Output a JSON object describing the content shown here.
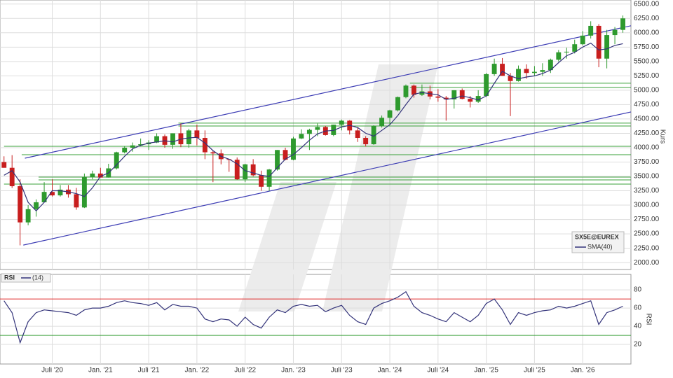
{
  "chart_data": {
    "type": "candlestick",
    "instrument": "SX5E@EUREX",
    "y_label": "Kurs",
    "x": [
      0,
      1,
      2,
      3,
      4,
      5,
      6,
      7,
      8,
      9,
      10,
      11,
      12,
      13,
      14,
      15,
      16,
      17,
      18,
      19,
      20,
      21,
      22,
      23,
      24,
      25,
      26,
      27,
      28,
      29,
      30,
      31,
      32,
      33,
      34,
      35,
      36,
      37,
      38,
      39,
      40,
      41,
      42,
      43,
      44,
      45,
      46,
      47,
      48,
      49,
      50,
      51,
      52,
      53,
      54,
      55,
      56,
      57,
      58,
      59,
      60,
      61,
      62,
      63,
      64,
      65,
      66,
      67,
      68,
      69,
      70,
      71,
      72,
      73,
      74,
      75,
      76,
      77
    ],
    "xlim": [
      -0.5,
      78
    ],
    "xticks": [
      {
        "value": 6,
        "label": "Juli '20"
      },
      {
        "value": 12,
        "label": "Jan. '21"
      },
      {
        "value": 18,
        "label": "Juli '21"
      },
      {
        "value": 24,
        "label": "Jan. '22"
      },
      {
        "value": 30,
        "label": "Juli '22"
      },
      {
        "value": 36,
        "label": "Jan. '23"
      },
      {
        "value": 42,
        "label": "Juli '23"
      },
      {
        "value": 48,
        "label": "Jan. '24"
      },
      {
        "value": 54,
        "label": "Juli '24"
      },
      {
        "value": 60,
        "label": "Jan. '25"
      },
      {
        "value": 66,
        "label": "Juli '25"
      },
      {
        "value": 72,
        "label": "Jan. '26"
      }
    ],
    "ylim": [
      1880,
      6570
    ],
    "yticks": [
      {
        "value": 2000,
        "label": "2000.00"
      },
      {
        "value": 2250,
        "label": "2250.00"
      },
      {
        "value": 2500,
        "label": "2500.00"
      },
      {
        "value": 2750,
        "label": "2750.00"
      },
      {
        "value": 3000,
        "label": "3000.00"
      },
      {
        "value": 3250,
        "label": "3250.00"
      },
      {
        "value": 3500,
        "label": "3500.00"
      },
      {
        "value": 3750,
        "label": "3750.00"
      },
      {
        "value": 4000,
        "label": "4000.00"
      },
      {
        "value": 4250,
        "label": "4250.00"
      },
      {
        "value": 4500,
        "label": "4500.00"
      },
      {
        "value": 4750,
        "label": "4750.00"
      },
      {
        "value": 5000,
        "label": "5000.00"
      },
      {
        "value": 5250,
        "label": "5250.00"
      },
      {
        "value": 5500,
        "label": "5500.00"
      },
      {
        "value": 5750,
        "label": "5750.00"
      },
      {
        "value": 6000,
        "label": "6000.00"
      },
      {
        "value": 6250,
        "label": "6250.00"
      },
      {
        "value": 6500,
        "label": "6500.00"
      }
    ],
    "grid": true,
    "up_color": "#2e9a2e",
    "down_color": "#c81e1e",
    "candles": [
      [
        3750,
        3850,
        3650,
        3650
      ],
      [
        3650,
        3870,
        3300,
        3330
      ],
      [
        3330,
        3450,
        2300,
        2700
      ],
      [
        2700,
        3000,
        2650,
        2930
      ],
      [
        2930,
        3100,
        2800,
        3050
      ],
      [
        3050,
        3400,
        3050,
        3230
      ],
      [
        3230,
        3450,
        3150,
        3170
      ],
      [
        3170,
        3350,
        3150,
        3270
      ],
      [
        3270,
        3350,
        3130,
        3190
      ],
      [
        3190,
        3300,
        2920,
        2960
      ],
      [
        2960,
        3550,
        2950,
        3490
      ],
      [
        3490,
        3600,
        3450,
        3550
      ],
      [
        3550,
        3650,
        3480,
        3480
      ],
      [
        3480,
        3720,
        3480,
        3640
      ],
      [
        3640,
        3930,
        3620,
        3920
      ],
      [
        3920,
        4030,
        3900,
        4000
      ],
      [
        4000,
        4090,
        3930,
        4040
      ],
      [
        4040,
        4160,
        4030,
        4060
      ],
      [
        4060,
        4130,
        3960,
        4090
      ],
      [
        4090,
        4250,
        4080,
        4200
      ],
      [
        4200,
        4230,
        4000,
        4050
      ],
      [
        4050,
        4250,
        3980,
        4250
      ],
      [
        4250,
        4420,
        4010,
        4060
      ],
      [
        4060,
        4330,
        4000,
        4300
      ],
      [
        4300,
        4400,
        4040,
        4170
      ],
      [
        4170,
        4300,
        3800,
        3920
      ],
      [
        3920,
        3950,
        3400,
        3900
      ],
      [
        3900,
        3970,
        3710,
        3800
      ],
      [
        3800,
        3800,
        3580,
        3790
      ],
      [
        3790,
        3830,
        3440,
        3450
      ],
      [
        3450,
        3720,
        3400,
        3710
      ],
      [
        3710,
        3800,
        3500,
        3520
      ],
      [
        3520,
        3600,
        3250,
        3320
      ],
      [
        3320,
        3630,
        3250,
        3620
      ],
      [
        3620,
        3960,
        3600,
        3960
      ],
      [
        3960,
        4000,
        3780,
        3790
      ],
      [
        3790,
        4190,
        3780,
        4160
      ],
      [
        4160,
        4320,
        4150,
        4240
      ],
      [
        4240,
        4330,
        3960,
        4310
      ],
      [
        4310,
        4420,
        4200,
        4360
      ],
      [
        4360,
        4380,
        4210,
        4220
      ],
      [
        4220,
        4400,
        4200,
        4400
      ],
      [
        4400,
        4490,
        4300,
        4470
      ],
      [
        4470,
        4480,
        4230,
        4300
      ],
      [
        4300,
        4350,
        4100,
        4170
      ],
      [
        4170,
        4200,
        4020,
        4060
      ],
      [
        4060,
        4390,
        4050,
        4380
      ],
      [
        4380,
        4560,
        4350,
        4520
      ],
      [
        4520,
        4660,
        4400,
        4650
      ],
      [
        4650,
        4890,
        4630,
        4880
      ],
      [
        4880,
        5100,
        4860,
        5080
      ],
      [
        5080,
        5100,
        4870,
        4920
      ],
      [
        4920,
        5100,
        4900,
        4980
      ],
      [
        4980,
        5080,
        4840,
        4890
      ],
      [
        4890,
        5020,
        4800,
        4870
      ],
      [
        4870,
        4900,
        4470,
        4840
      ],
      [
        4840,
        5000,
        4680,
        5000
      ],
      [
        5000,
        5030,
        4840,
        4850
      ],
      [
        4850,
        4900,
        4700,
        4800
      ],
      [
        4800,
        5000,
        4780,
        4900
      ],
      [
        4900,
        5300,
        4880,
        5280
      ],
      [
        5280,
        5550,
        5250,
        5460
      ],
      [
        5460,
        5560,
        5250,
        5250
      ],
      [
        5250,
        5300,
        4550,
        5160
      ],
      [
        5160,
        5430,
        5150,
        5370
      ],
      [
        5370,
        5450,
        5200,
        5300
      ],
      [
        5300,
        5420,
        5250,
        5320
      ],
      [
        5320,
        5470,
        5250,
        5350
      ],
      [
        5350,
        5550,
        5300,
        5530
      ],
      [
        5530,
        5700,
        5500,
        5660
      ],
      [
        5660,
        5740,
        5550,
        5670
      ],
      [
        5670,
        5880,
        5640,
        5800
      ],
      [
        5800,
        6030,
        5780,
        5950
      ],
      [
        5950,
        6200,
        5900,
        6120
      ],
      [
        6120,
        6150,
        5400,
        5550
      ],
      [
        5550,
        6050,
        5380,
        5960
      ],
      [
        5960,
        6100,
        5800,
        6050
      ],
      [
        6050,
        6300,
        6000,
        6250
      ]
    ],
    "sma": {
      "name": "SMA(40)",
      "color": "#33337a",
      "values": [
        3520,
        3600,
        3400,
        3050,
        2900,
        3050,
        3250,
        3250,
        3230,
        3200,
        3150,
        3300,
        3500,
        3560,
        3700,
        3850,
        3980,
        4040,
        4080,
        4100,
        4120,
        4100,
        4150,
        4170,
        4180,
        4080,
        3950,
        3850,
        3800,
        3720,
        3600,
        3560,
        3520,
        3500,
        3650,
        3800,
        3880,
        4000,
        4130,
        4240,
        4290,
        4300,
        4360,
        4390,
        4350,
        4250,
        4200,
        4300,
        4400,
        4560,
        4750,
        4930,
        4960,
        4940,
        4920,
        4840,
        4860,
        4900,
        4870,
        4830,
        4900,
        5120,
        5330,
        5250,
        5200,
        5230,
        5250,
        5290,
        5350,
        5480,
        5600,
        5660,
        5750,
        5820,
        5700,
        5720,
        5780,
        5810
      ]
    },
    "channel_color": "#3c3cb4",
    "channels": [
      {
        "x": [
          2.6,
          78
        ],
        "y": [
          3817,
          6122
        ]
      },
      {
        "x": [
          2.4,
          78
        ],
        "y": [
          2305,
          4622
        ]
      }
    ],
    "level_color": "#3aa03a",
    "levels": [
      {
        "x_start": 50.5,
        "value": 5122
      },
      {
        "x_start": 50.5,
        "value": 5049
      },
      {
        "x_start": 21.7,
        "value": 4427
      },
      {
        "x_start": 21.7,
        "value": 4378
      },
      {
        "x_start": 0,
        "value": 4024
      },
      {
        "x_start": 2.2,
        "value": 3878
      },
      {
        "x_start": 4.3,
        "value": 3488
      },
      {
        "x_start": 4.3,
        "value": 3439
      },
      {
        "x_start": 0,
        "value": 3366
      }
    ],
    "rsi": {
      "title": "RSI",
      "name": "(14)",
      "color": "#33337a",
      "ylim": [
        -1.5,
        97
      ],
      "yticks": [
        20,
        40,
        60,
        80
      ],
      "levels": [
        {
          "value": 70,
          "color": "#e03030"
        },
        {
          "value": 30,
          "color": "#3aa03a"
        }
      ],
      "values": [
        68,
        55,
        22,
        45,
        55,
        58,
        57,
        56,
        55,
        52,
        58,
        60,
        60,
        62,
        66,
        68,
        66,
        65,
        63,
        66,
        58,
        64,
        62,
        62,
        60,
        48,
        45,
        48,
        47,
        40,
        50,
        42,
        38,
        50,
        58,
        55,
        62,
        64,
        62,
        63,
        56,
        60,
        63,
        52,
        45,
        42,
        60,
        65,
        68,
        72,
        78,
        62,
        55,
        52,
        48,
        45,
        55,
        50,
        45,
        52,
        65,
        70,
        58,
        42,
        55,
        52,
        55,
        57,
        58,
        62,
        60,
        62,
        65,
        68,
        42,
        55,
        58,
        62
      ]
    }
  }
}
